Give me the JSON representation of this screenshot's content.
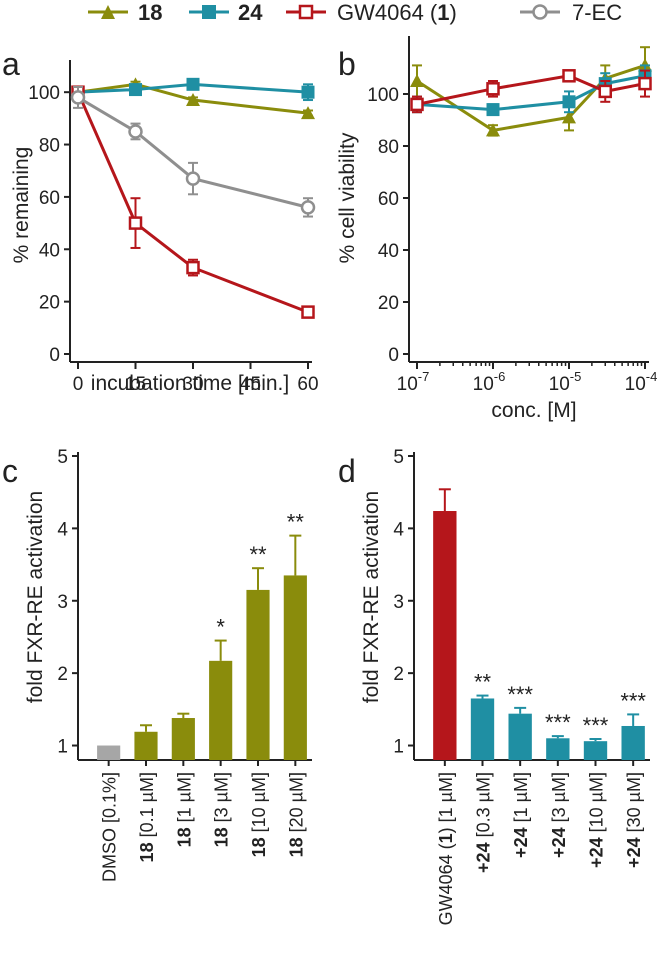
{
  "legend": {
    "position": "top",
    "items": [
      {
        "label": "18",
        "bold": true,
        "color": "#8a8c0c",
        "marker": "triangle-filled"
      },
      {
        "label": "24",
        "bold": true,
        "color": "#1f8fa3",
        "marker": "square-filled"
      },
      {
        "label": "GW4064 (1)",
        "bold": false,
        "color": "#b5161b",
        "marker": "square-open"
      },
      {
        "label": "7-EC",
        "bold": false,
        "color": "#8f8f8f",
        "marker": "circle-open"
      }
    ]
  },
  "chart_data": [
    {
      "panel": "a",
      "type": "line",
      "xlabel": "incubation time [min.]",
      "ylabel": "% remaining",
      "xlim": [
        0,
        60
      ],
      "ylim": [
        0,
        110
      ],
      "xticks": [
        0,
        15,
        30,
        45,
        60
      ],
      "yticks": [
        0,
        20,
        40,
        60,
        80,
        100
      ],
      "x": [
        0,
        15,
        30,
        60
      ],
      "series": [
        {
          "name": "18",
          "color": "#8a8c0c",
          "marker": "triangle",
          "values": [
            100,
            103,
            97,
            92
          ],
          "errors": [
            1.5,
            1,
            1,
            1
          ]
        },
        {
          "name": "24",
          "color": "#1f8fa3",
          "marker": "square",
          "values": [
            100,
            101,
            103,
            100
          ],
          "errors": [
            2,
            1,
            1,
            3
          ]
        },
        {
          "name": "GW4064 (1)",
          "color": "#b5161b",
          "marker": "square-open",
          "values": [
            100,
            50,
            33,
            16
          ],
          "errors": [
            2,
            9.5,
            3,
            1
          ]
        },
        {
          "name": "7-EC",
          "color": "#8f8f8f",
          "marker": "circle-open",
          "values": [
            98,
            85,
            67,
            56
          ],
          "errors": [
            4,
            3,
            6,
            3.5
          ]
        }
      ]
    },
    {
      "panel": "b",
      "type": "line",
      "xscale": "log",
      "xlabel": "conc. [M]",
      "ylabel": "% cell viability",
      "xlim_exp": [
        -7,
        -4
      ],
      "ylim": [
        0,
        120
      ],
      "xtick_labels": [
        {
          "exp": -7,
          "base": "10",
          "sup": "-7"
        },
        {
          "exp": -6,
          "base": "10",
          "sup": "-6"
        },
        {
          "exp": -5,
          "base": "10",
          "sup": "-5"
        },
        {
          "exp": -4,
          "base": "10",
          "sup": "-4"
        }
      ],
      "yticks": [
        0,
        20,
        40,
        60,
        80,
        100
      ],
      "x_exp": [
        -7,
        -6,
        -5,
        -4.523,
        -4
      ],
      "series": [
        {
          "name": "18",
          "color": "#8a8c0c",
          "marker": "triangle",
          "values": [
            105,
            86,
            91,
            106,
            111
          ],
          "errors": [
            6,
            2,
            5,
            5,
            7
          ]
        },
        {
          "name": "24",
          "color": "#1f8fa3",
          "marker": "square",
          "values": [
            96,
            94,
            97,
            104,
            107
          ],
          "errors": [
            3,
            2,
            4,
            4,
            4
          ]
        },
        {
          "name": "GW4064 (1)",
          "color": "#b5161b",
          "marker": "square-open",
          "values": [
            96,
            102,
            107,
            101,
            104
          ],
          "errors": [
            3,
            3,
            2,
            4,
            5
          ]
        }
      ]
    },
    {
      "panel": "c",
      "type": "bar",
      "ylabel": "fold FXR-RE activation",
      "ylim": [
        0.8,
        5
      ],
      "yticks": [
        1,
        2,
        3,
        4,
        5
      ],
      "categories": [
        {
          "bold": "",
          "rest": "DMSO [0.1%]"
        },
        {
          "bold": "18",
          "rest": " [0.1 µM]"
        },
        {
          "bold": "18",
          "rest": " [1 µM]"
        },
        {
          "bold": "18",
          "rest": " [3 µM]"
        },
        {
          "bold": "18",
          "rest": " [10 µM]"
        },
        {
          "bold": "18",
          "rest": " [20 µM]"
        }
      ],
      "values": [
        1.0,
        1.19,
        1.38,
        2.17,
        3.15,
        3.35
      ],
      "errors": [
        0,
        0.09,
        0.06,
        0.28,
        0.3,
        0.55
      ],
      "colors": [
        "#a6a6a6",
        "#8a8c0c",
        "#8a8c0c",
        "#8a8c0c",
        "#8a8c0c",
        "#8a8c0c"
      ],
      "significance": [
        "",
        "",
        "",
        "*",
        "**",
        "**"
      ]
    },
    {
      "panel": "d",
      "type": "bar",
      "ylabel": "fold FXR-RE activation",
      "ylim": [
        0.8,
        5
      ],
      "yticks": [
        1,
        2,
        3,
        4,
        5
      ],
      "categories": [
        {
          "pre": "GW4064 (",
          "bold": "1",
          "rest": ") [1 µM]"
        },
        {
          "pre": "",
          "bold": "+24",
          "rest": " [0.3 µM]"
        },
        {
          "pre": "",
          "bold": "+24",
          "rest": " [1 µM]"
        },
        {
          "pre": "",
          "bold": "+24",
          "rest": " [3 µM]"
        },
        {
          "pre": "",
          "bold": "+24",
          "rest": " [10 µM]"
        },
        {
          "pre": "",
          "bold": "+24",
          "rest": " [30 µM]"
        }
      ],
      "values": [
        4.24,
        1.65,
        1.44,
        1.1,
        1.06,
        1.27
      ],
      "errors": [
        0.3,
        0.04,
        0.08,
        0.03,
        0.03,
        0.16
      ],
      "colors": [
        "#b5161b",
        "#1f8fa3",
        "#1f8fa3",
        "#1f8fa3",
        "#1f8fa3",
        "#1f8fa3"
      ],
      "significance": [
        "",
        "**",
        "***",
        "***",
        "***",
        "***"
      ]
    }
  ]
}
